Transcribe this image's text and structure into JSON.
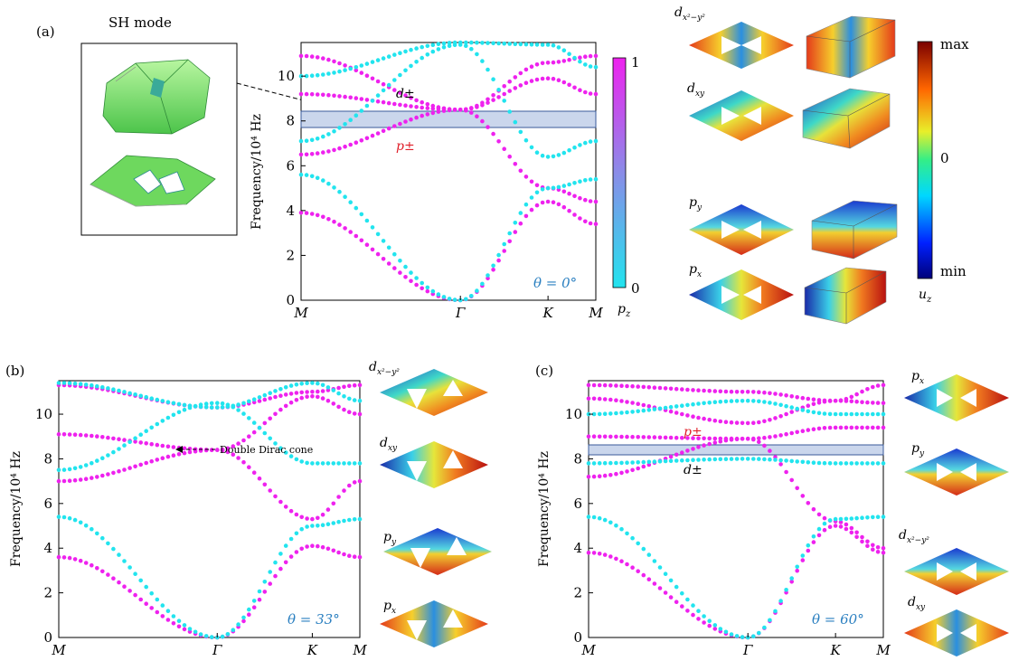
{
  "panels": {
    "a": "(a)",
    "b": "(b)",
    "c": "(c)"
  },
  "sh_mode_title": "SH mode",
  "ylabel": "Frequency/10⁴ Hz",
  "kpath": [
    "M",
    "Γ",
    "K",
    "M"
  ],
  "yticks": [
    "0",
    "2",
    "4",
    "6",
    "8",
    "10"
  ],
  "colors": {
    "pz0": "#22e4ee",
    "pz1": "#ee22ee",
    "band_highlight": "#b8c8e6",
    "theta_text": "#2a7fc0",
    "red_label": "#e0202a"
  },
  "annotations": {
    "a_dpm": "d±",
    "a_ppm": "p±",
    "c_ppm": "p±",
    "c_dpm": "d±",
    "dirac": "Double Dirac cone"
  },
  "pz_colorbar": {
    "min_label": "0",
    "max_label": "1",
    "title": "p_z"
  },
  "uz_colorbar": {
    "max_label": "max",
    "mid_label": "0",
    "min_label": "min",
    "title": "u_z"
  },
  "mode_labels_a": [
    "d_{x²−y²}",
    "d_{xy}",
    "p_y",
    "p_x"
  ],
  "mode_labels_b": [
    "d_{x²−y²}",
    "d_{xy}",
    "p_y",
    "p_x"
  ],
  "mode_labels_c": [
    "p_x",
    "p_y",
    "d_{x²−y²}",
    "d_{xy}"
  ],
  "chart_data": [
    {
      "type": "scatter",
      "panel": "(a)",
      "theta": "θ = 0°",
      "xlabel": "",
      "ylabel": "Frequency/10⁴ Hz",
      "ylim": [
        0,
        11.5
      ],
      "xticks": [
        "M",
        "Γ",
        "K",
        "M"
      ],
      "highlight_band": [
        7.75,
        8.45
      ],
      "series": [
        {
          "points": [
            [
              0,
              3.9
            ],
            [
              1,
              0
            ],
            [
              1.55,
              4.4
            ],
            [
              1.85,
              3.4
            ]
          ],
          "pz": 1
        },
        {
          "points": [
            [
              0,
              6.5
            ],
            [
              1,
              8.5
            ],
            [
              1.55,
              5.0
            ],
            [
              1.85,
              4.4
            ]
          ],
          "pz": 1
        },
        {
          "points": [
            [
              0,
              9.2
            ],
            [
              1,
              8.5
            ],
            [
              1.55,
              9.9
            ],
            [
              1.85,
              9.2
            ]
          ],
          "pz": 1
        },
        {
          "points": [
            [
              0,
              10.9
            ],
            [
              1,
              8.5
            ],
            [
              1.55,
              10.6
            ],
            [
              1.85,
              10.9
            ]
          ],
          "pz": 1
        },
        {
          "points": [
            [
              0,
              5.6
            ],
            [
              1,
              0
            ],
            [
              1.55,
              5.0
            ],
            [
              1.85,
              5.4
            ]
          ],
          "pz": 0
        },
        {
          "points": [
            [
              0,
              7.1
            ],
            [
              1,
              11.4
            ],
            [
              1.55,
              6.4
            ],
            [
              1.85,
              7.1
            ]
          ],
          "pz": 0
        },
        {
          "points": [
            [
              0,
              10.0
            ],
            [
              1,
              11.5
            ],
            [
              1.55,
              11.4
            ],
            [
              1.85,
              10.4
            ]
          ],
          "pz": 0
        }
      ]
    },
    {
      "type": "scatter",
      "panel": "(b)",
      "theta": "θ = 33°",
      "xlabel": "",
      "ylabel": "Frequency/10⁴ Hz",
      "ylim": [
        0,
        11.5
      ],
      "xticks": [
        "M",
        "Γ",
        "K",
        "M"
      ],
      "series": [
        {
          "points": [
            [
              0,
              3.6
            ],
            [
              1,
              0
            ],
            [
              1.6,
              4.1
            ],
            [
              1.9,
              3.6
            ]
          ],
          "pz": 1
        },
        {
          "points": [
            [
              0,
              7.0
            ],
            [
              1,
              8.4
            ],
            [
              1.6,
              5.3
            ],
            [
              1.9,
              7.0
            ]
          ],
          "pz": 1
        },
        {
          "points": [
            [
              0,
              9.1
            ],
            [
              1,
              8.4
            ],
            [
              1.6,
              10.8
            ],
            [
              1.9,
              10.0
            ]
          ],
          "pz": 1
        },
        {
          "points": [
            [
              0,
              11.3
            ],
            [
              1,
              10.3
            ],
            [
              1.6,
              11.0
            ],
            [
              1.9,
              11.3
            ]
          ],
          "pz": 1
        },
        {
          "points": [
            [
              0,
              5.4
            ],
            [
              1,
              0
            ],
            [
              1.6,
              5.0
            ],
            [
              1.9,
              5.3
            ]
          ],
          "pz": 0
        },
        {
          "points": [
            [
              0,
              7.5
            ],
            [
              1,
              10.5
            ],
            [
              1.6,
              7.8
            ],
            [
              1.9,
              7.8
            ]
          ],
          "pz": 0
        },
        {
          "points": [
            [
              0,
              11.4
            ],
            [
              1,
              10.3
            ],
            [
              1.6,
              11.4
            ],
            [
              1.9,
              10.6
            ]
          ],
          "pz": 0
        }
      ]
    },
    {
      "type": "scatter",
      "panel": "(c)",
      "theta": "θ = 60°",
      "xlabel": "",
      "ylabel": "Frequency/10⁴ Hz",
      "ylim": [
        0,
        11.5
      ],
      "xticks": [
        "M",
        "Γ",
        "K",
        "M"
      ],
      "highlight_band": [
        8.25,
        8.65
      ],
      "series": [
        {
          "points": [
            [
              0,
              3.8
            ],
            [
              1,
              0
            ],
            [
              1.55,
              5.0
            ],
            [
              1.85,
              3.8
            ]
          ],
          "pz": 1
        },
        {
          "points": [
            [
              0,
              7.2
            ],
            [
              1,
              8.9
            ],
            [
              1.55,
              5.2
            ],
            [
              1.85,
              4.0
            ]
          ],
          "pz": 1
        },
        {
          "points": [
            [
              0,
              9.0
            ],
            [
              1,
              8.9
            ],
            [
              1.55,
              9.4
            ],
            [
              1.85,
              9.4
            ]
          ],
          "pz": 1
        },
        {
          "points": [
            [
              0,
              10.7
            ],
            [
              1,
              9.6
            ],
            [
              1.55,
              10.6
            ],
            [
              1.85,
              10.5
            ]
          ],
          "pz": 1
        },
        {
          "points": [
            [
              0,
              11.3
            ],
            [
              1,
              11.0
            ],
            [
              1.55,
              10.6
            ],
            [
              1.85,
              11.3
            ]
          ],
          "pz": 1
        },
        {
          "points": [
            [
              0,
              5.4
            ],
            [
              1,
              0
            ],
            [
              1.55,
              5.3
            ],
            [
              1.85,
              5.4
            ]
          ],
          "pz": 0
        },
        {
          "points": [
            [
              0,
              7.8
            ],
            [
              1,
              8.0
            ],
            [
              1.55,
              7.8
            ],
            [
              1.85,
              7.8
            ]
          ],
          "pz": 0
        },
        {
          "points": [
            [
              0,
              10.0
            ],
            [
              1,
              10.6
            ],
            [
              1.55,
              10.0
            ],
            [
              1.85,
              10.0
            ]
          ],
          "pz": 0
        }
      ]
    }
  ]
}
